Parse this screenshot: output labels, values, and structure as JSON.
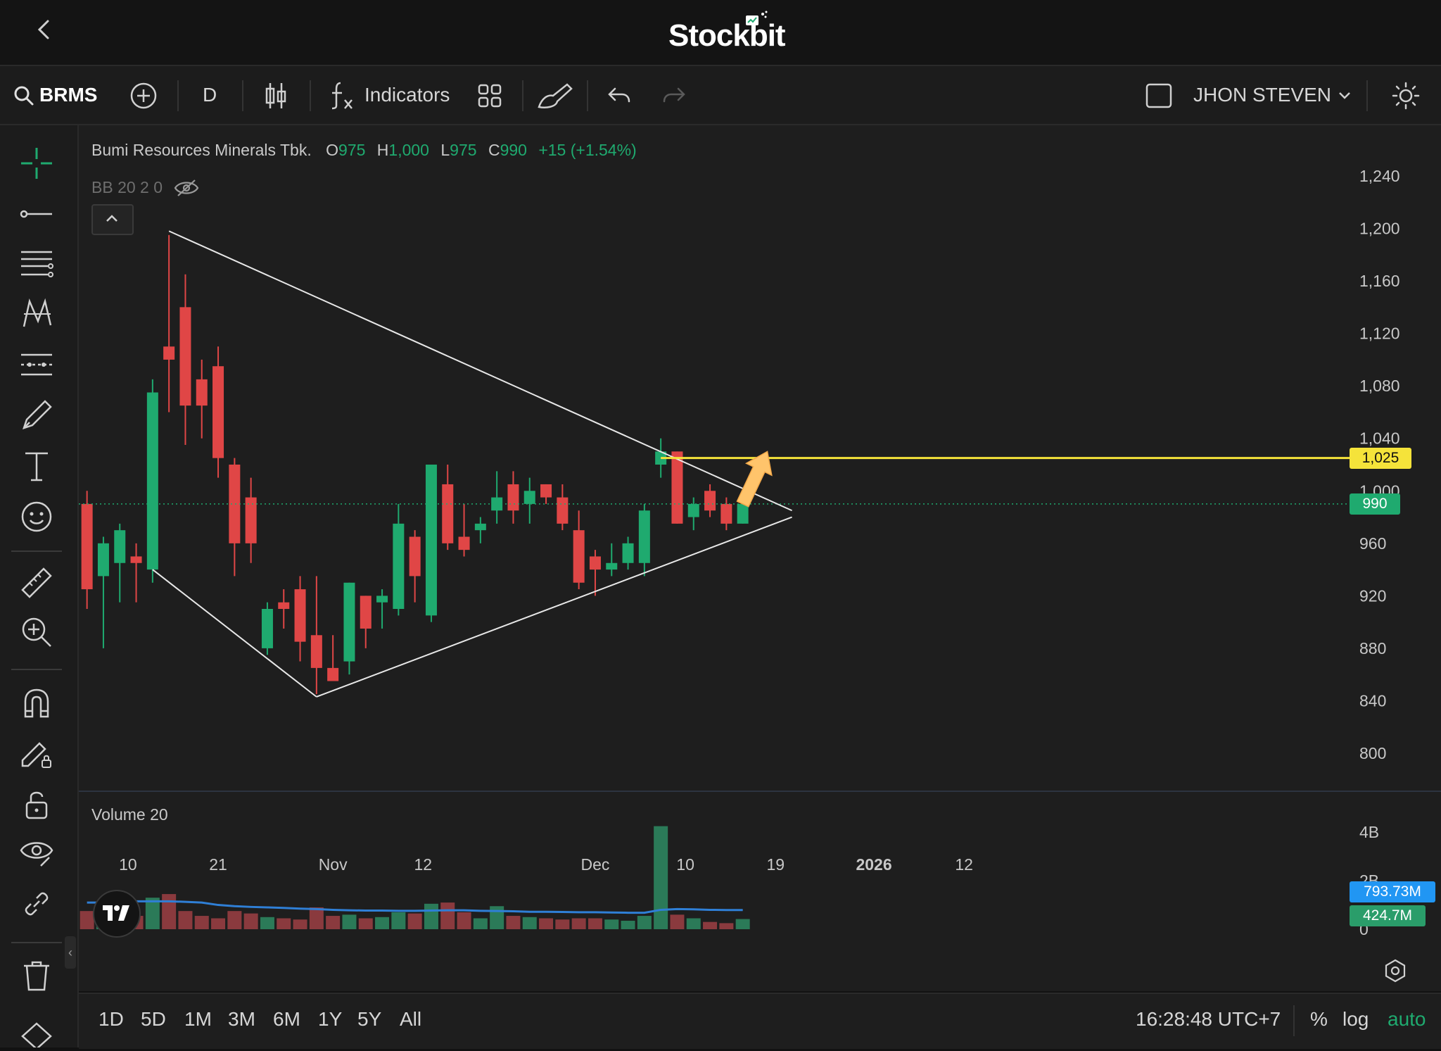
{
  "app": {
    "title": "Stockbit"
  },
  "toolbar": {
    "symbol": "BRMS",
    "interval": "D",
    "indicators_label": "Indicators",
    "account": "JHON STEVEN"
  },
  "legend": {
    "name": "Bumi Resources Minerals Tbk.",
    "o_label": "O",
    "o_value": "975",
    "h_label": "H",
    "h_value": "1,000",
    "l_label": "L",
    "l_value": "975",
    "c_label": "C",
    "c_value": "990",
    "change": "+15 (+1.54%)",
    "bb": "BB 20 2 0",
    "volume_label": "Volume 20"
  },
  "price_axis": {
    "ticks": [
      "1,240",
      "1,200",
      "1,160",
      "1,120",
      "1,080",
      "1,040",
      "1,000",
      "960",
      "920",
      "880",
      "840",
      "800"
    ],
    "tick_values": [
      1240,
      1200,
      1160,
      1120,
      1080,
      1040,
      1000,
      960,
      920,
      880,
      840,
      800
    ],
    "yellow_label": "1,025",
    "yellow_value": 1025,
    "last_label": "990",
    "last_value": 990
  },
  "volume_axis": {
    "ticks": [
      "4B",
      "2B",
      "0"
    ],
    "ma_label": "793.73M",
    "vol_label": "424.7M"
  },
  "time_axis": {
    "ticks": [
      {
        "label": "10",
        "bold": false
      },
      {
        "label": "21",
        "bold": false
      },
      {
        "label": "Nov",
        "bold": false
      },
      {
        "label": "12",
        "bold": false
      },
      {
        "label": "Dec",
        "bold": false
      },
      {
        "label": "10",
        "bold": false
      },
      {
        "label": "19",
        "bold": false
      },
      {
        "label": "2026",
        "bold": true
      },
      {
        "label": "12",
        "bold": false
      }
    ]
  },
  "bottom": {
    "ranges": [
      "1D",
      "5D",
      "1M",
      "3M",
      "6M",
      "1Y",
      "5Y",
      "All"
    ],
    "clock": "16:28:48 UTC+7",
    "percent": "%",
    "log": "log",
    "auto": "auto"
  },
  "colors": {
    "up": "#1faa6f",
    "down": "#e04646",
    "yellow": "#f5e33a",
    "ma": "#2f7fd6",
    "bg": "#1e1e1e"
  },
  "icons": {
    "left_tools": [
      "crosshair-icon",
      "trend-line-icon",
      "fib-icon",
      "pattern-icon",
      "forecast-icon",
      "brush-icon",
      "text-icon",
      "emoji-icon",
      "ruler-icon",
      "zoom-in-icon",
      "magnet-icon",
      "lock-draw-icon",
      "unlock-icon",
      "eye-icon",
      "link-icon",
      "trash-icon"
    ]
  },
  "chart_data": {
    "type": "candlestick",
    "price_range": [
      780,
      1255
    ],
    "volume_range": [
      0,
      4.5
    ],
    "volume_unit": "B",
    "candles": [
      {
        "o": 990,
        "h": 1000,
        "l": 910,
        "c": 925,
        "v": 0.75
      },
      {
        "o": 935,
        "h": 965,
        "l": 880,
        "c": 960,
        "v": 0.6
      },
      {
        "o": 945,
        "h": 975,
        "l": 915,
        "c": 970,
        "v": 0.65
      },
      {
        "o": 950,
        "h": 960,
        "l": 915,
        "c": 945,
        "v": 0.55
      },
      {
        "o": 940,
        "h": 1085,
        "l": 930,
        "c": 1075,
        "v": 1.3
      },
      {
        "o": 1110,
        "h": 1195,
        "l": 1060,
        "c": 1100,
        "v": 1.45
      },
      {
        "o": 1140,
        "h": 1165,
        "l": 1035,
        "c": 1065,
        "v": 0.75
      },
      {
        "o": 1085,
        "h": 1100,
        "l": 1040,
        "c": 1065,
        "v": 0.55
      },
      {
        "o": 1095,
        "h": 1110,
        "l": 1010,
        "c": 1025,
        "v": 0.45
      },
      {
        "o": 1020,
        "h": 1025,
        "l": 935,
        "c": 960,
        "v": 0.75
      },
      {
        "o": 995,
        "h": 1010,
        "l": 945,
        "c": 960,
        "v": 0.65
      },
      {
        "o": 880,
        "h": 915,
        "l": 875,
        "c": 910,
        "v": 0.5
      },
      {
        "o": 915,
        "h": 925,
        "l": 895,
        "c": 910,
        "v": 0.45
      },
      {
        "o": 925,
        "h": 935,
        "l": 870,
        "c": 885,
        "v": 0.4
      },
      {
        "o": 890,
        "h": 935,
        "l": 845,
        "c": 865,
        "v": 0.9
      },
      {
        "o": 865,
        "h": 890,
        "l": 855,
        "c": 855,
        "v": 0.55
      },
      {
        "o": 870,
        "h": 930,
        "l": 860,
        "c": 930,
        "v": 0.6
      },
      {
        "o": 920,
        "h": 920,
        "l": 880,
        "c": 895,
        "v": 0.45
      },
      {
        "o": 915,
        "h": 925,
        "l": 895,
        "c": 920,
        "v": 0.5
      },
      {
        "o": 910,
        "h": 990,
        "l": 905,
        "c": 975,
        "v": 0.7
      },
      {
        "o": 965,
        "h": 970,
        "l": 915,
        "c": 935,
        "v": 0.65
      },
      {
        "o": 905,
        "h": 1020,
        "l": 900,
        "c": 1020,
        "v": 1.05
      },
      {
        "o": 1005,
        "h": 1020,
        "l": 955,
        "c": 960,
        "v": 1.1
      },
      {
        "o": 965,
        "h": 990,
        "l": 950,
        "c": 955,
        "v": 0.7
      },
      {
        "o": 970,
        "h": 980,
        "l": 960,
        "c": 975,
        "v": 0.45
      },
      {
        "o": 985,
        "h": 1015,
        "l": 975,
        "c": 995,
        "v": 0.95
      },
      {
        "o": 1005,
        "h": 1015,
        "l": 975,
        "c": 985,
        "v": 0.55
      },
      {
        "o": 990,
        "h": 1010,
        "l": 975,
        "c": 1000,
        "v": 0.5
      },
      {
        "o": 1005,
        "h": 1005,
        "l": 990,
        "c": 995,
        "v": 0.45
      },
      {
        "o": 995,
        "h": 1005,
        "l": 970,
        "c": 975,
        "v": 0.4
      },
      {
        "o": 970,
        "h": 985,
        "l": 925,
        "c": 930,
        "v": 0.45
      },
      {
        "o": 950,
        "h": 955,
        "l": 920,
        "c": 940,
        "v": 0.45
      },
      {
        "o": 940,
        "h": 960,
        "l": 935,
        "c": 945,
        "v": 0.4
      },
      {
        "o": 945,
        "h": 965,
        "l": 940,
        "c": 960,
        "v": 0.35
      },
      {
        "o": 945,
        "h": 990,
        "l": 935,
        "c": 985,
        "v": 0.55
      },
      {
        "o": 1020,
        "h": 1040,
        "l": 1010,
        "c": 1030,
        "v": 4.25
      },
      {
        "o": 1030,
        "h": 1030,
        "l": 975,
        "c": 975,
        "v": 0.6
      },
      {
        "o": 980,
        "h": 995,
        "l": 970,
        "c": 990,
        "v": 0.45
      },
      {
        "o": 1000,
        "h": 1005,
        "l": 980,
        "c": 985,
        "v": 0.3
      },
      {
        "o": 990,
        "h": 995,
        "l": 970,
        "c": 975,
        "v": 0.25
      },
      {
        "o": 975,
        "h": 1000,
        "l": 975,
        "c": 990,
        "v": 0.42
      }
    ],
    "volume_ma": [
      1.1,
      1.1,
      1.12,
      1.15,
      1.15,
      1.15,
      1.13,
      1.1,
      1.0,
      0.95,
      0.92,
      0.9,
      0.88,
      0.85,
      0.83,
      0.8,
      0.78,
      0.77,
      0.77,
      0.76,
      0.76,
      0.77,
      0.78,
      0.78,
      0.76,
      0.75,
      0.74,
      0.72,
      0.72,
      0.71,
      0.7,
      0.7,
      0.69,
      0.68,
      0.68,
      0.8,
      0.83,
      0.82,
      0.8,
      0.79,
      0.79
    ],
    "volume_ma_label": "793.73M",
    "last_volume_label": "424.7M",
    "drawings": {
      "triangle_upper": [
        {
          "i": 5,
          "p": 1198
        },
        {
          "i": 43,
          "p": 985
        }
      ],
      "triangle_lower_left": [
        {
          "i": 4,
          "p": 940
        },
        {
          "i": 14,
          "p": 843
        }
      ],
      "triangle_lower": [
        {
          "i": 14,
          "p": 843
        },
        {
          "i": 43,
          "p": 980
        }
      ],
      "yellow_hline": 1025,
      "arrow": [
        {
          "i": 40,
          "p": 990
        },
        {
          "i": 41.5,
          "p": 1030
        }
      ]
    }
  }
}
